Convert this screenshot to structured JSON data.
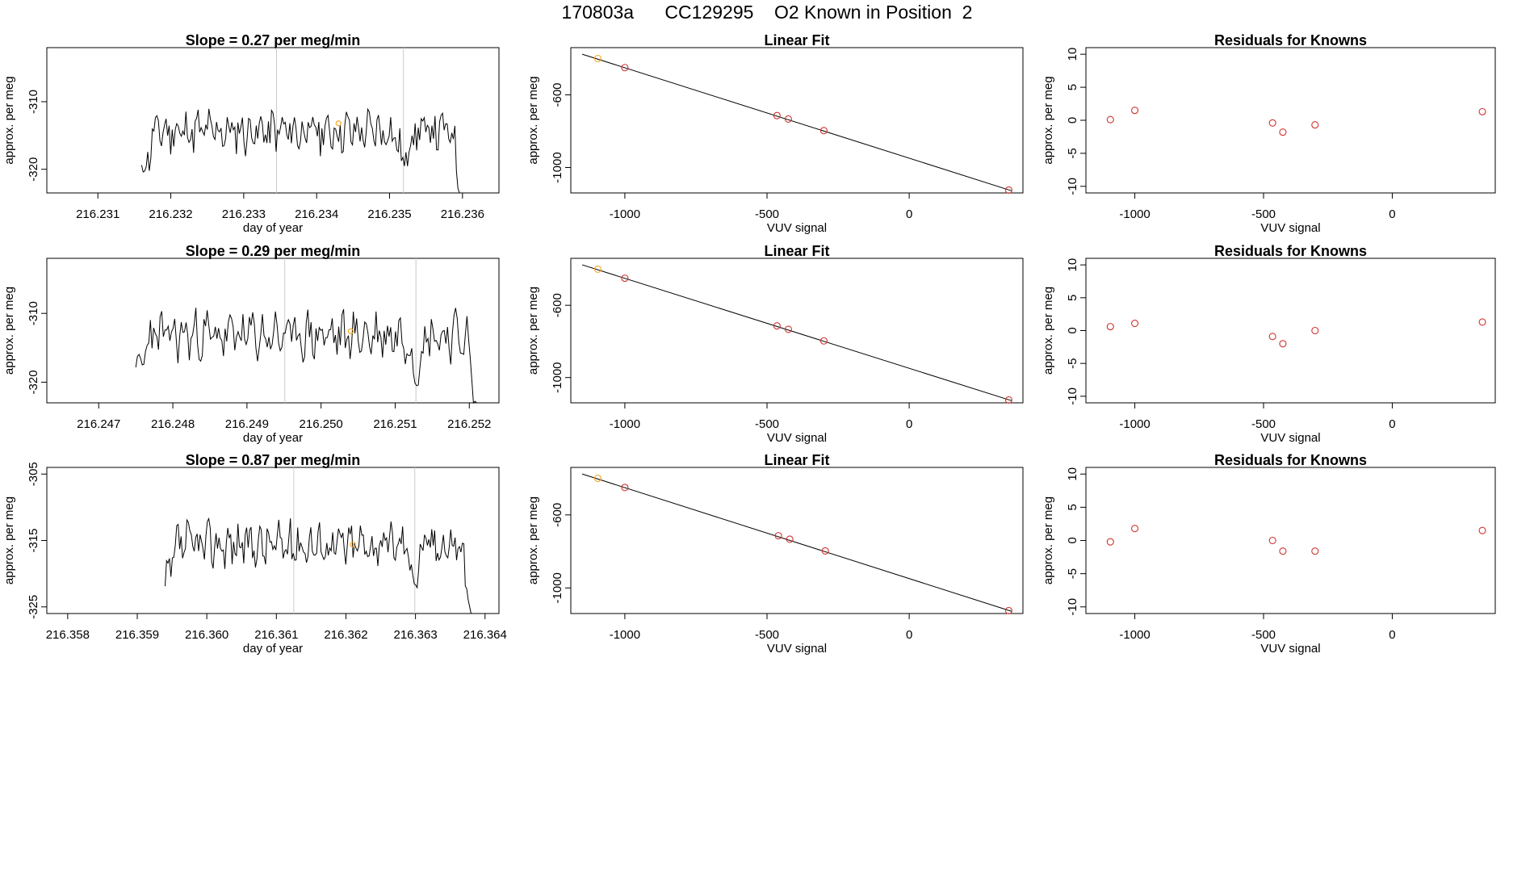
{
  "page_title": "170803a      CC129295    O2 Known in Position  2",
  "colors": {
    "line": "#000000",
    "highlight": "#f5a623",
    "residual": "#d0312d",
    "marker_line": "#cccccc"
  },
  "chart_data": [
    {
      "id": "r1-timeseries",
      "type": "line",
      "title": "Slope =  0.27  per meg/min",
      "xlabel": "day of year",
      "ylabel": "approx. per meg",
      "xlim": [
        216.2303,
        216.2365
      ],
      "ylim": [
        -323.5,
        -302
      ],
      "xticks": [
        "216.231",
        "216.232",
        "216.233",
        "216.234",
        "216.235",
        "216.236"
      ],
      "xtick_values": [
        216.231,
        216.232,
        216.233,
        216.234,
        216.235,
        216.236
      ],
      "yticks": [
        "-310",
        "-320"
      ],
      "ytick_values": [
        -310,
        -320
      ],
      "x_start": 216.2316,
      "x_end": 216.236,
      "base": -314.4,
      "amp": 2.5,
      "noise_seed": 11,
      "vlines": [
        216.23345,
        216.23519
      ],
      "highlight": {
        "x": 216.2343,
        "y": -313.2
      }
    },
    {
      "id": "r1-fit",
      "type": "scatter",
      "title": "Linear Fit",
      "xlabel": "VUV signal",
      "ylabel": "approx. per meg",
      "xlim": [
        -1190,
        400
      ],
      "ylim": [
        -1140,
        -340
      ],
      "xticks": [
        "-1000",
        "-500",
        "0"
      ],
      "xtick_values": [
        -1000,
        -500,
        0
      ],
      "yticks": [
        "-600",
        "-1000"
      ],
      "ytick_values": [
        -600,
        -1000
      ],
      "fit": {
        "x": [
          -1150,
          360
        ],
        "y": [
          -376,
          -1128
        ]
      },
      "points": [
        {
          "x": -1095,
          "y": -400,
          "color": "highlight"
        },
        {
          "x": -1000,
          "y": -450
        },
        {
          "x": -465,
          "y": -714
        },
        {
          "x": -425,
          "y": -733
        },
        {
          "x": -300,
          "y": -797
        },
        {
          "x": 350,
          "y": -1124
        }
      ]
    },
    {
      "id": "r1-residuals",
      "type": "scatter",
      "title": "Residuals for Knowns",
      "xlabel": "VUV signal",
      "ylabel": "approx. per meg",
      "xlim": [
        -1190,
        400
      ],
      "ylim": [
        -11,
        11
      ],
      "xticks": [
        "-1000",
        "-500",
        "0"
      ],
      "xtick_values": [
        -1000,
        -500,
        0
      ],
      "yticks": [
        "10",
        "5",
        "0",
        "-5",
        "-10"
      ],
      "ytick_values": [
        10,
        5,
        0,
        -5,
        -10
      ],
      "points": [
        {
          "x": -1095,
          "y": 0.1
        },
        {
          "x": -1000,
          "y": 1.5
        },
        {
          "x": -465,
          "y": -0.4
        },
        {
          "x": -425,
          "y": -1.8
        },
        {
          "x": -300,
          "y": -0.7
        },
        {
          "x": 350,
          "y": 1.3
        }
      ]
    },
    {
      "id": "r2-timeseries",
      "type": "line",
      "title": "Slope =  0.29  per meg/min",
      "xlabel": "day of year",
      "ylabel": "approx. per meg",
      "xlim": [
        216.2463,
        216.2524
      ],
      "ylim": [
        -323,
        -302
      ],
      "xticks": [
        "216.247",
        "216.248",
        "216.249",
        "216.250",
        "216.251",
        "216.252"
      ],
      "xtick_values": [
        216.247,
        216.248,
        216.249,
        216.25,
        216.251,
        216.252
      ],
      "yticks": [
        "-310",
        "-320"
      ],
      "ytick_values": [
        -310,
        -320
      ],
      "x_start": 216.2475,
      "x_end": 216.2521,
      "base": -313.2,
      "amp": 2.7,
      "noise_seed": 23,
      "vlines": [
        216.24951,
        216.25128
      ],
      "highlight": {
        "x": 216.2504,
        "y": -312.6
      }
    },
    {
      "id": "r2-fit",
      "type": "scatter",
      "title": "Linear Fit",
      "xlabel": "VUV signal",
      "ylabel": "approx. per meg",
      "xlim": [
        -1190,
        400
      ],
      "ylim": [
        -1140,
        -340
      ],
      "xticks": [
        "-1000",
        "-500",
        "0"
      ],
      "xtick_values": [
        -1000,
        -500,
        0
      ],
      "yticks": [
        "-600",
        "-1000"
      ],
      "ytick_values": [
        -600,
        -1000
      ],
      "fit": {
        "x": [
          -1150,
          360
        ],
        "y": [
          -376,
          -1128
        ]
      },
      "points": [
        {
          "x": -1095,
          "y": -400,
          "color": "highlight"
        },
        {
          "x": -1000,
          "y": -450
        },
        {
          "x": -465,
          "y": -714
        },
        {
          "x": -425,
          "y": -733
        },
        {
          "x": -300,
          "y": -797
        },
        {
          "x": 350,
          "y": -1124
        }
      ]
    },
    {
      "id": "r2-residuals",
      "type": "scatter",
      "title": "Residuals for Knowns",
      "xlabel": "VUV signal",
      "ylabel": "approx. per meg",
      "xlim": [
        -1190,
        400
      ],
      "ylim": [
        -11,
        11
      ],
      "xticks": [
        "-1000",
        "-500",
        "0"
      ],
      "xtick_values": [
        -1000,
        -500,
        0
      ],
      "yticks": [
        "10",
        "5",
        "0",
        "-5",
        "-10"
      ],
      "ytick_values": [
        10,
        5,
        0,
        -5,
        -10
      ],
      "points": [
        {
          "x": -1095,
          "y": 0.6
        },
        {
          "x": -1000,
          "y": 1.1
        },
        {
          "x": -465,
          "y": -0.9
        },
        {
          "x": -425,
          "y": -2.0
        },
        {
          "x": -300,
          "y": 0.0
        },
        {
          "x": 350,
          "y": 1.3
        }
      ]
    },
    {
      "id": "r3-timeseries",
      "type": "line",
      "title": "Slope =  0.87  per meg/min",
      "xlabel": "day of year",
      "ylabel": "approx. per meg",
      "xlim": [
        216.3577,
        216.3642
      ],
      "ylim": [
        -326,
        -304
      ],
      "xticks": [
        "216.358",
        "216.359",
        "216.360",
        "216.361",
        "216.362",
        "216.363",
        "216.364"
      ],
      "xtick_values": [
        216.358,
        216.359,
        216.36,
        216.361,
        216.362,
        216.363,
        216.364
      ],
      "yticks": [
        "-305",
        "-315",
        "-325"
      ],
      "ytick_values": [
        -305,
        -315,
        -325
      ],
      "x_start": 216.3594,
      "x_end": 216.3638,
      "base": -315.6,
      "amp": 2.6,
      "noise_seed": 37,
      "vlines": [
        216.36125,
        216.36299
      ],
      "highlight": {
        "x": 216.3621,
        "y": -315.6
      }
    },
    {
      "id": "r3-fit",
      "type": "scatter",
      "title": "Linear Fit",
      "xlabel": "VUV signal",
      "ylabel": "approx. per meg",
      "xlim": [
        -1190,
        400
      ],
      "ylim": [
        -1140,
        -340
      ],
      "xticks": [
        "-1000",
        "-500",
        "0"
      ],
      "xtick_values": [
        -1000,
        -500,
        0
      ],
      "yticks": [
        "-600",
        "-1000"
      ],
      "ytick_values": [
        -600,
        -1000
      ],
      "fit": {
        "x": [
          -1150,
          360
        ],
        "y": [
          -376,
          -1128
        ]
      },
      "points": [
        {
          "x": -1095,
          "y": -400,
          "color": "highlight"
        },
        {
          "x": -1000,
          "y": -450
        },
        {
          "x": -460,
          "y": -714
        },
        {
          "x": -420,
          "y": -733
        },
        {
          "x": -295,
          "y": -797
        },
        {
          "x": 350,
          "y": -1124
        }
      ]
    },
    {
      "id": "r3-residuals",
      "type": "scatter",
      "title": "Residuals for Knowns",
      "xlabel": "VUV signal",
      "ylabel": "approx. per meg",
      "xlim": [
        -1190,
        400
      ],
      "ylim": [
        -11,
        11
      ],
      "xticks": [
        "-1000",
        "-500",
        "0"
      ],
      "xtick_values": [
        -1000,
        -500,
        0
      ],
      "yticks": [
        "10",
        "5",
        "0",
        "-5",
        "-10"
      ],
      "ytick_values": [
        10,
        5,
        0,
        -5,
        -10
      ],
      "points": [
        {
          "x": -1095,
          "y": -0.2
        },
        {
          "x": -1000,
          "y": 1.8
        },
        {
          "x": -465,
          "y": 0.0
        },
        {
          "x": -425,
          "y": -1.6
        },
        {
          "x": -300,
          "y": -1.6
        },
        {
          "x": 350,
          "y": 1.5
        }
      ]
    }
  ]
}
